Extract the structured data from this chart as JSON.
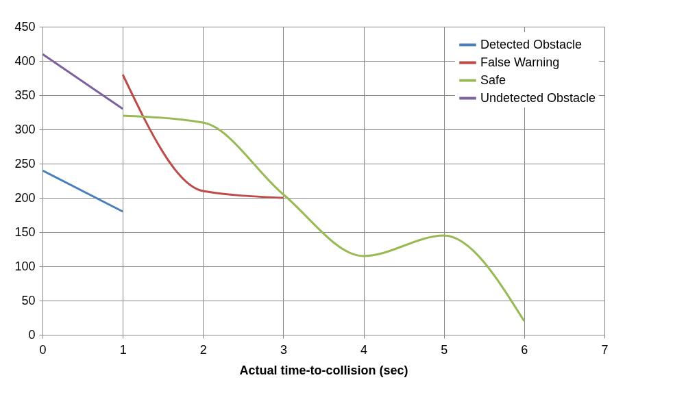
{
  "chart_data": {
    "type": "line",
    "xlabel": "Actual time-to-collision (sec)",
    "xlim": [
      0,
      7
    ],
    "xticks": [
      0,
      1,
      2,
      3,
      4,
      5,
      6,
      7
    ],
    "ylim": [
      0,
      450
    ],
    "yticks": [
      0,
      50,
      100,
      150,
      200,
      250,
      300,
      350,
      400,
      450
    ],
    "grid": true,
    "legend": "top right",
    "marker": "none",
    "line_style": "solid",
    "series": [
      {
        "name": "Detected Obstacle",
        "color": "#4a7ebb",
        "x": [
          0,
          1
        ],
        "values": [
          240,
          180
        ]
      },
      {
        "name": "False Warning",
        "color": "#be4b48",
        "x": [
          1,
          2,
          3
        ],
        "values": [
          380,
          210,
          200
        ]
      },
      {
        "name": "Safe",
        "color": "#98b954",
        "x": [
          1,
          2,
          3,
          4,
          5,
          6
        ],
        "values": [
          320,
          310,
          205,
          115,
          145,
          20
        ]
      },
      {
        "name": "Undetected Obstacle",
        "color": "#7d60a0",
        "x": [
          0,
          1
        ],
        "values": [
          410,
          330
        ]
      }
    ]
  }
}
